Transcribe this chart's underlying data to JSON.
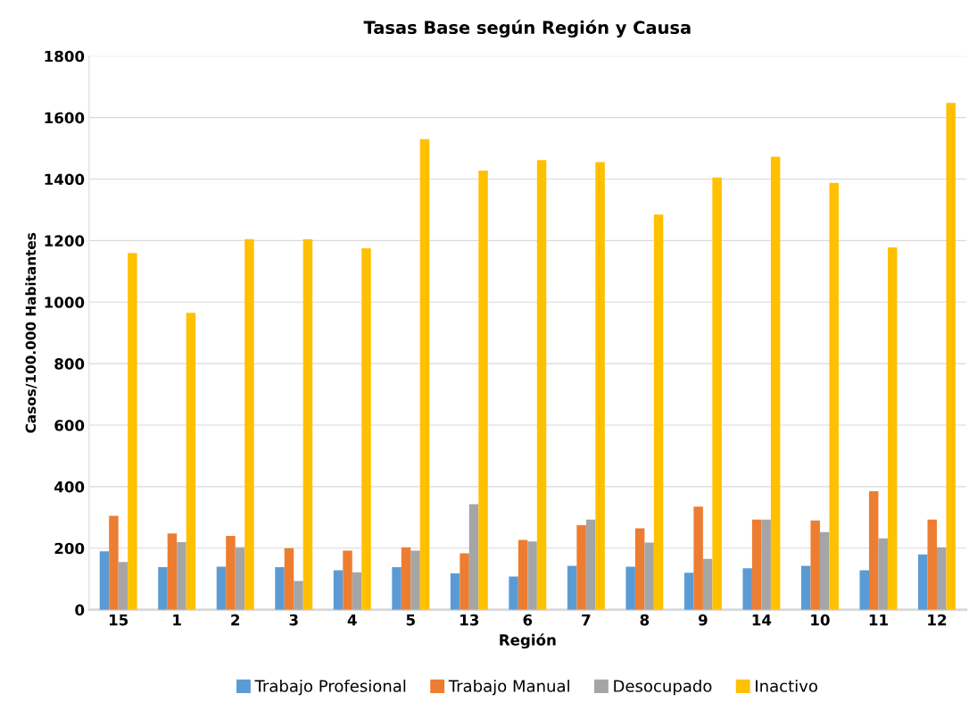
{
  "chart_data": {
    "type": "bar",
    "title": "Tasas Base según Región y Causa",
    "xlabel": "Región",
    "ylabel": "Casos/100.000 Habitantes",
    "categories": [
      "15",
      "1",
      "2",
      "3",
      "4",
      "5",
      "13",
      "6",
      "7",
      "8",
      "9",
      "14",
      "10",
      "11",
      "12"
    ],
    "series": [
      {
        "name": "Trabajo Profesional",
        "color": "#5b9bd5",
        "values": [
          190,
          138,
          140,
          138,
          128,
          138,
          118,
          108,
          143,
          140,
          120,
          135,
          143,
          128,
          180
        ]
      },
      {
        "name": "Trabajo Manual",
        "color": "#ed7d31",
        "values": [
          305,
          248,
          240,
          200,
          192,
          203,
          183,
          227,
          275,
          265,
          335,
          293,
          290,
          385,
          293
        ]
      },
      {
        "name": "Desocupado",
        "color": "#a5a5a5",
        "values": [
          155,
          220,
          203,
          93,
          122,
          192,
          343,
          222,
          293,
          218,
          165,
          293,
          252,
          232,
          203
        ]
      },
      {
        "name": "Inactivo",
        "color": "#ffc000",
        "values": [
          1160,
          965,
          1205,
          1205,
          1175,
          1530,
          1428,
          1462,
          1455,
          1285,
          1405,
          1473,
          1388,
          1178,
          1648
        ]
      }
    ],
    "ylim": [
      0,
      1800
    ],
    "yticks": [
      0,
      200,
      400,
      600,
      800,
      1000,
      1200,
      1400,
      1600,
      1800
    ],
    "grid": "y",
    "legend": "bottom"
  }
}
